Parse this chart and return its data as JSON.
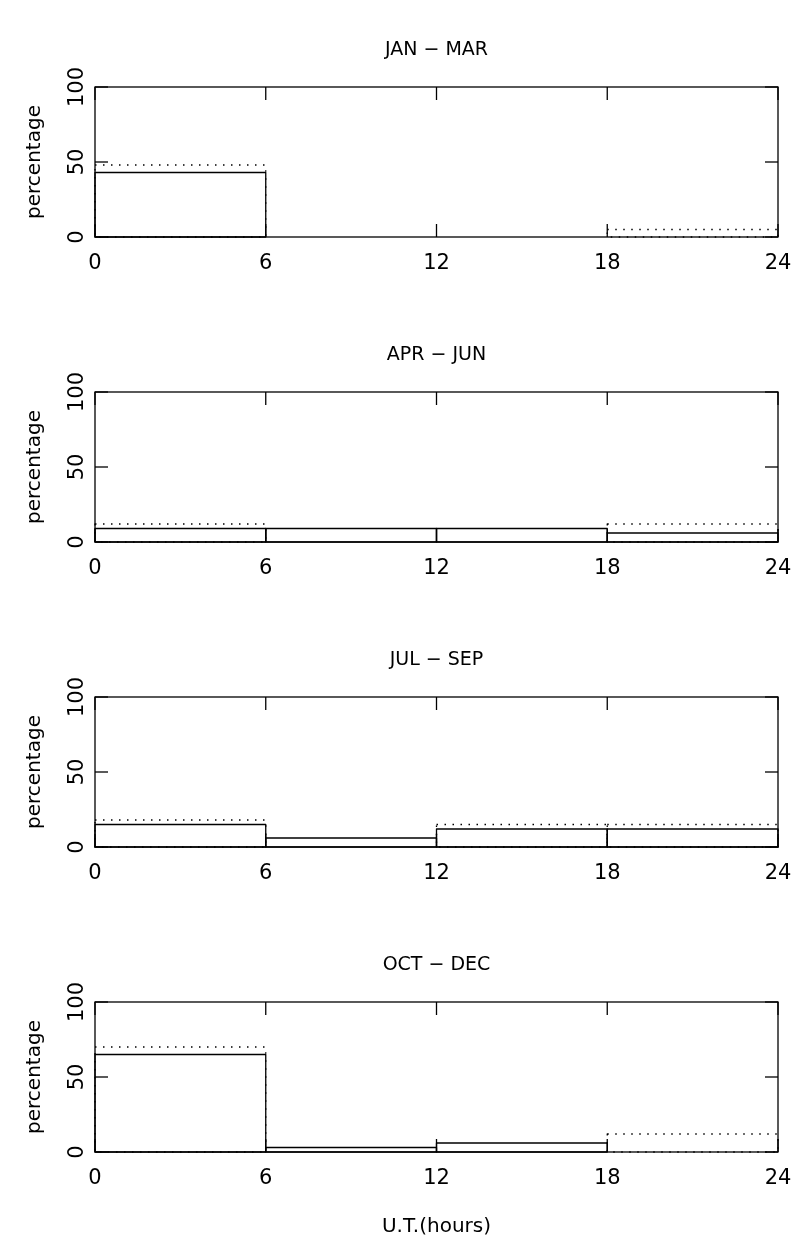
{
  "chart_data": [
    {
      "type": "histogram",
      "title": "JAN − MAR",
      "ylabel": "percentage",
      "bins": [
        0,
        6,
        12,
        18,
        24
      ],
      "xlim": [
        0,
        24
      ],
      "xticks": [
        0,
        6,
        12,
        18,
        24
      ],
      "ylim": [
        0,
        100
      ],
      "yticks": [
        0,
        50,
        100
      ],
      "series": [
        {
          "color": "#000000",
          "line_style": "solid",
          "values": [
            43,
            0,
            0,
            0
          ]
        },
        {
          "color": "#000000",
          "line_style": "dotted",
          "values": [
            48,
            0,
            0,
            5
          ]
        }
      ]
    },
    {
      "type": "histogram",
      "title": "APR − JUN",
      "ylabel": "percentage",
      "bins": [
        0,
        6,
        12,
        18,
        24
      ],
      "xlim": [
        0,
        24
      ],
      "xticks": [
        0,
        6,
        12,
        18,
        24
      ],
      "ylim": [
        0,
        100
      ],
      "yticks": [
        0,
        50,
        100
      ],
      "series": [
        {
          "color": "#000000",
          "line_style": "solid",
          "values": [
            9,
            9,
            9,
            6
          ]
        },
        {
          "color": "#000000",
          "line_style": "dotted",
          "values": [
            12,
            null,
            null,
            12
          ]
        }
      ]
    },
    {
      "type": "histogram",
      "title": "JUL − SEP",
      "ylabel": "percentage",
      "bins": [
        0,
        6,
        12,
        18,
        24
      ],
      "xlim": [
        0,
        24
      ],
      "xticks": [
        0,
        6,
        12,
        18,
        24
      ],
      "ylim": [
        0,
        100
      ],
      "yticks": [
        0,
        50,
        100
      ],
      "series": [
        {
          "color": "#000000",
          "line_style": "solid",
          "values": [
            15,
            6,
            12,
            12
          ]
        },
        {
          "color": "#000000",
          "line_style": "dotted",
          "values": [
            18,
            null,
            15,
            15
          ]
        }
      ]
    },
    {
      "type": "histogram",
      "title": "OCT − DEC",
      "ylabel": "percentage",
      "xlabel": "U.T.(hours)",
      "bins": [
        0,
        6,
        12,
        18,
        24
      ],
      "xlim": [
        0,
        24
      ],
      "xticks": [
        0,
        6,
        12,
        18,
        24
      ],
      "ylim": [
        0,
        100
      ],
      "yticks": [
        0,
        50,
        100
      ],
      "series": [
        {
          "color": "#000000",
          "line_style": "solid",
          "values": [
            65,
            3,
            6,
            0
          ]
        },
        {
          "color": "#000000",
          "line_style": "dotted",
          "values": [
            70,
            null,
            null,
            12
          ]
        }
      ]
    }
  ]
}
